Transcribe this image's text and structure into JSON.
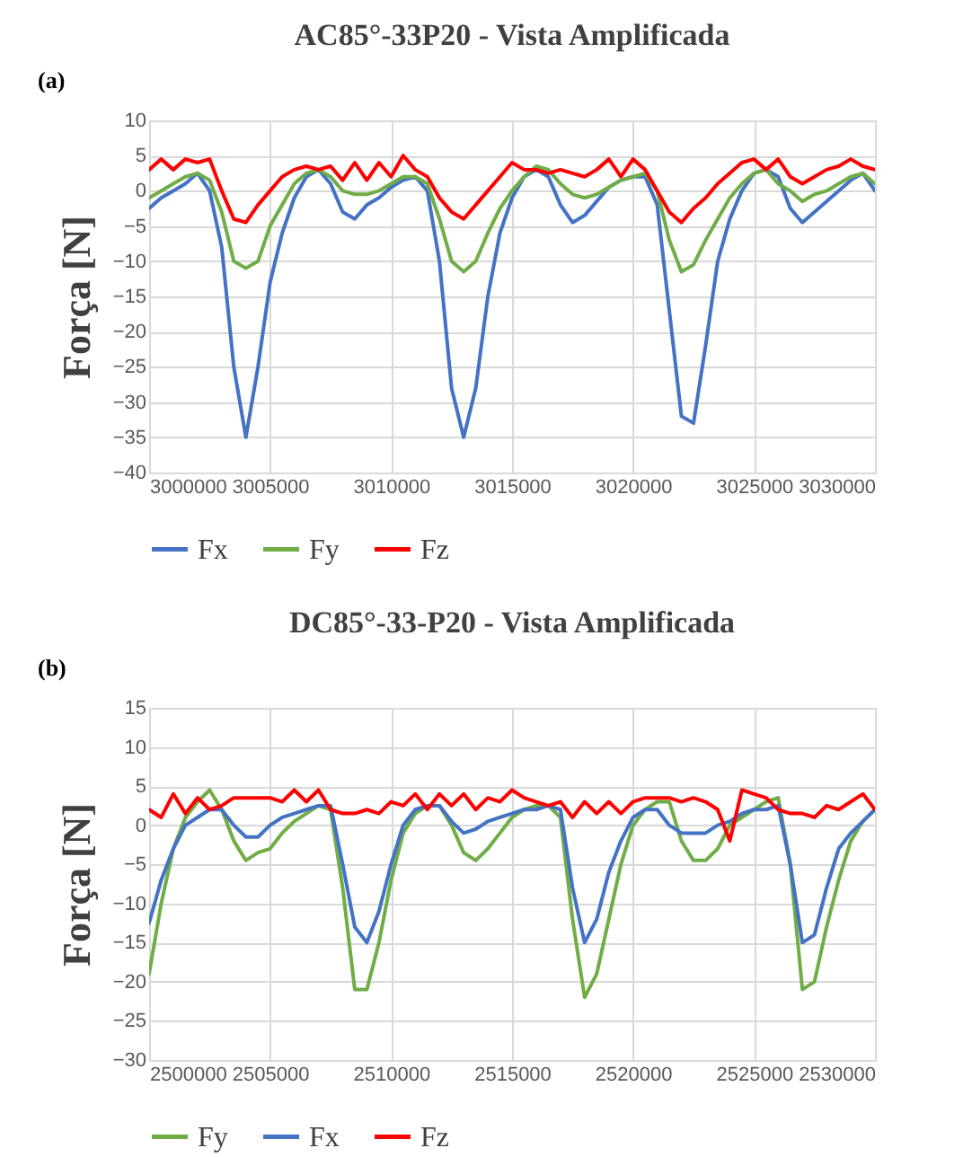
{
  "chart_data": [
    {
      "type": "line",
      "title": "AC85°-33P20 - Vista Amplificada",
      "ylabel": "Força [N]",
      "annotations": [
        "(a)"
      ],
      "x": [
        3000000,
        3000500,
        3001000,
        3001500,
        3002000,
        3002500,
        3003000,
        3003500,
        3004000,
        3004500,
        3005000,
        3005500,
        3006000,
        3006500,
        3007000,
        3007500,
        3008000,
        3008500,
        3009000,
        3009500,
        3010000,
        3010500,
        3011000,
        3011500,
        3012000,
        3012500,
        3013000,
        3013500,
        3014000,
        3014500,
        3015000,
        3015500,
        3016000,
        3016500,
        3017000,
        3017500,
        3018000,
        3018500,
        3019000,
        3019500,
        3020000,
        3020500,
        3021000,
        3021500,
        3022000,
        3022500,
        3023000,
        3023500,
        3024000,
        3024500,
        3025000,
        3025500,
        3026000,
        3026500,
        3027000,
        3027500,
        3028000,
        3028500,
        3029000,
        3029500,
        3030000
      ],
      "series": [
        {
          "name": "Fx",
          "color": "#4472c4",
          "values": [
            -2.5,
            -1,
            0,
            1,
            2.5,
            0,
            -8,
            -25,
            -35,
            -25,
            -13,
            -6,
            -1,
            2,
            3,
            1,
            -3,
            -4,
            -2,
            -1,
            0.5,
            1.5,
            2,
            0,
            -10,
            -28,
            -35,
            -28,
            -15,
            -6,
            -1,
            2,
            3,
            2,
            -2,
            -4.5,
            -3.5,
            -1.5,
            0.5,
            1.5,
            2,
            2,
            -2,
            -17,
            -32,
            -33,
            -22,
            -10,
            -4,
            0,
            2.5,
            3,
            2,
            -2.5,
            -4.5,
            -3,
            -1.5,
            0,
            1.5,
            2.5,
            0
          ]
        },
        {
          "name": "Fy",
          "color": "#70ad47",
          "values": [
            -1,
            0,
            1,
            2,
            2.5,
            1.5,
            -3,
            -10,
            -11,
            -10,
            -5,
            -2,
            1,
            2.5,
            3,
            2,
            0,
            -0.5,
            -0.5,
            0,
            1,
            2,
            2,
            1,
            -4,
            -10,
            -11.5,
            -10,
            -6,
            -2.5,
            0,
            2,
            3.5,
            3,
            1,
            -0.5,
            -1,
            -0.5,
            0.5,
            1.5,
            2,
            2.5,
            0,
            -7,
            -11.5,
            -10.5,
            -7,
            -4,
            -1,
            1,
            2.5,
            3,
            1,
            0,
            -1.5,
            -0.5,
            0,
            1,
            2,
            2.5,
            1
          ]
        },
        {
          "name": "Fz",
          "color": "#ff0000",
          "values": [
            3,
            4.5,
            3,
            4.5,
            4,
            4.5,
            0,
            -4,
            -4.5,
            -2,
            0,
            2,
            3,
            3.5,
            3,
            3.5,
            1.5,
            4,
            1.5,
            4,
            2,
            5,
            3,
            2,
            -1,
            -3,
            -4,
            -2,
            0,
            2,
            4,
            3,
            3,
            2.5,
            3,
            2.5,
            2,
            3,
            4.5,
            2,
            4.5,
            3,
            0,
            -3,
            -4.5,
            -2.5,
            -1,
            1,
            2.5,
            4,
            4.5,
            3,
            4.5,
            2,
            1,
            2,
            3,
            3.5,
            4.5,
            3.5,
            3
          ]
        }
      ],
      "xlim": [
        3000000,
        3030000
      ],
      "xticks": [
        3000000,
        3005000,
        3010000,
        3015000,
        3020000,
        3025000,
        3030000
      ],
      "ylim": [
        -40,
        10
      ],
      "yticks": [
        -40,
        -35,
        -30,
        -25,
        -20,
        -15,
        -10,
        -5,
        0,
        5,
        10
      ],
      "grid": true,
      "legend": "bottom"
    },
    {
      "type": "line",
      "title": "DC85°-33-P20 - Vista Amplificada",
      "ylabel": "Força [N]",
      "annotations": [
        "(b)"
      ],
      "x": [
        2500000,
        2500500,
        2501000,
        2501500,
        2502000,
        2502500,
        2503000,
        2503500,
        2504000,
        2504500,
        2505000,
        2505500,
        2506000,
        2506500,
        2507000,
        2507500,
        2508000,
        2508500,
        2509000,
        2509500,
        2510000,
        2510500,
        2511000,
        2511500,
        2512000,
        2512500,
        2513000,
        2513500,
        2514000,
        2514500,
        2515000,
        2515500,
        2516000,
        2516500,
        2517000,
        2517500,
        2518000,
        2518500,
        2519000,
        2519500,
        2520000,
        2520500,
        2521000,
        2521500,
        2522000,
        2522500,
        2523000,
        2523500,
        2524000,
        2524500,
        2525000,
        2525500,
        2526000,
        2526500,
        2527000,
        2527500,
        2528000,
        2528500,
        2529000,
        2529500,
        2530000
      ],
      "series": [
        {
          "name": "Fy",
          "color": "#70ad47",
          "values": [
            -19,
            -10,
            -3,
            1,
            3,
            4.5,
            2,
            -2,
            -4.5,
            -3.5,
            -3,
            -1,
            0.5,
            1.5,
            2.5,
            2,
            -8,
            -21,
            -21,
            -15,
            -7,
            -1,
            1.5,
            2.5,
            2.5,
            0,
            -3.5,
            -4.5,
            -3,
            -1,
            1,
            2,
            2.5,
            2.5,
            1,
            -12,
            -22,
            -19,
            -12,
            -5,
            0,
            2,
            3,
            3,
            -2,
            -4.5,
            -4.5,
            -3,
            0,
            1,
            2,
            3,
            3.5,
            -5,
            -21,
            -20,
            -13,
            -7,
            -2,
            0.5,
            2
          ]
        },
        {
          "name": "Fx",
          "color": "#4472c4",
          "values": [
            -12.5,
            -7,
            -3,
            0,
            1,
            2,
            2,
            0,
            -1.5,
            -1.5,
            0,
            1,
            1.5,
            2,
            2.5,
            2.5,
            -5,
            -13,
            -15,
            -11,
            -5,
            0,
            2,
            2.5,
            2.5,
            0.5,
            -1,
            -0.5,
            0.5,
            1,
            1.5,
            2,
            2,
            2.5,
            2,
            -8,
            -15,
            -12,
            -6,
            -2,
            1,
            2,
            2,
            0,
            -1,
            -1,
            -1,
            0,
            0.5,
            1.5,
            2,
            2,
            2.5,
            -5,
            -15,
            -14,
            -8,
            -3,
            -1,
            0.5,
            2
          ]
        },
        {
          "name": "Fz",
          "color": "#ff0000",
          "values": [
            2,
            1,
            4,
            1.5,
            3.5,
            2,
            2.5,
            3.5,
            3.5,
            3.5,
            3.5,
            3,
            4.5,
            3,
            4.5,
            2,
            1.5,
            1.5,
            2,
            1.5,
            3,
            2.5,
            4,
            2,
            4,
            2.5,
            4,
            2,
            3.5,
            3,
            4.5,
            3.5,
            3,
            2.5,
            3,
            1,
            3,
            1.5,
            3,
            1.5,
            3,
            3.5,
            3.5,
            3.5,
            3,
            3.5,
            3,
            2,
            -2,
            4.5,
            4,
            3.5,
            2,
            1.5,
            1.5,
            1,
            2.5,
            2,
            3,
            4,
            2
          ]
        }
      ],
      "xlim": [
        2500000,
        2530000
      ],
      "xticks": [
        2500000,
        2505000,
        2510000,
        2515000,
        2520000,
        2525000,
        2530000
      ],
      "ylim": [
        -30,
        15
      ],
      "yticks": [
        -30,
        -25,
        -20,
        -15,
        -10,
        -5,
        0,
        5,
        10,
        15
      ],
      "grid": true,
      "legend": "bottom"
    }
  ]
}
